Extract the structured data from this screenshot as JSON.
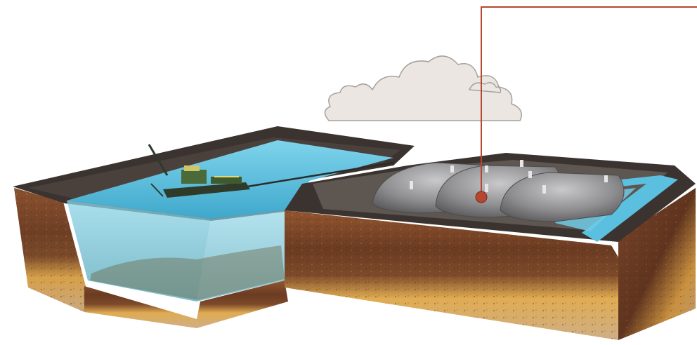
{
  "diagram": {
    "labels": [],
    "elements": [
      "cloud-icon",
      "dredge-icon",
      "water-basin",
      "geotube-bag",
      "callout-line",
      "callout-dot"
    ],
    "colors": {
      "callout": "#b5462f",
      "water": "#5cc3e0",
      "soil_top": "#8a4f2c",
      "soil_mid": "#6e3e24",
      "gravel": "#d9a24c",
      "rim": "#3b3330",
      "geotube": "#9a9a9c",
      "cloud": "#e8e2dc"
    }
  }
}
